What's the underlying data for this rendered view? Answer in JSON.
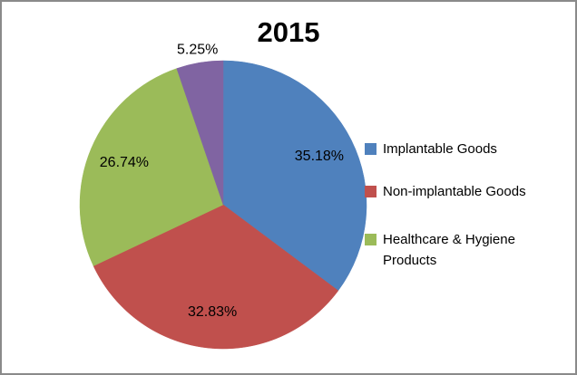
{
  "window": {
    "background": "#ffffff",
    "border_color": "#8a8a8a"
  },
  "chart_data": {
    "type": "pie",
    "title": "2015",
    "direction": "clockwise",
    "start_angle_deg": 0,
    "total": 100,
    "slices": [
      {
        "label": "35.18%",
        "value": 35.18,
        "color": "#4F81BD",
        "label_placement": "inside"
      },
      {
        "label": "32.83%",
        "value": 32.83,
        "color": "#C0504D",
        "label_placement": "inside"
      },
      {
        "label": "26.74%",
        "value": 26.74,
        "color": "#9BBB59",
        "label_placement": "inside"
      },
      {
        "label": "5.25%",
        "value": 5.25,
        "color": "#8064A2",
        "label_placement": "outside"
      }
    ],
    "data_label_color": "#000000",
    "title_color": "#000000",
    "legend": {
      "position": "right",
      "entries": [
        {
          "label": "Implantable Goods",
          "color": "#4F81BD"
        },
        {
          "label": "Non-implantable Goods",
          "color": "#C0504D"
        },
        {
          "label": "Healthcare & Hygiene Products",
          "color": "#9BBB59"
        }
      ]
    }
  }
}
